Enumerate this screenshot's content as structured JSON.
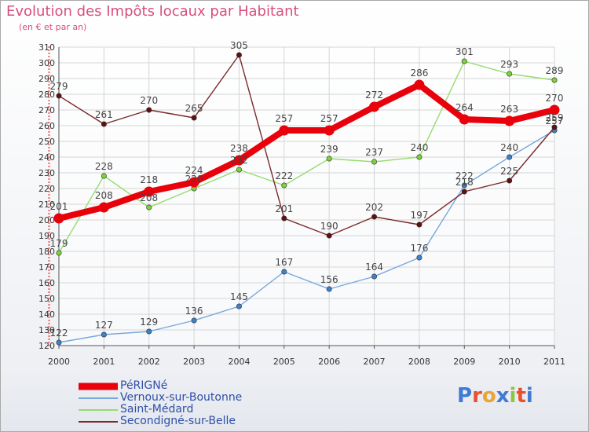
{
  "title": "Evolution des Impôts locaux par Habitant",
  "subtitle": "(en € et par an)",
  "brand": {
    "text": "Proxiti",
    "letter_colors": [
      "#3f7bd4",
      "#e8502e",
      "#e8a53a",
      "#3f7bd4",
      "#8dc63f",
      "#e8502e",
      "#3f7bd4"
    ]
  },
  "colors": {
    "title": "#d64f7d",
    "axis_text": "#333333",
    "grid": "#d5d5d5",
    "legend_text": "#2f4fa8"
  },
  "chart_data": {
    "type": "line",
    "title": "Evolution des Impôts locaux par Habitant",
    "subtitle": "(en € et par an)",
    "xlabel": "",
    "ylabel": "",
    "categories": [
      "2000",
      "2001",
      "2002",
      "2003",
      "2004",
      "2005",
      "2006",
      "2007",
      "2008",
      "2009",
      "2010",
      "2011"
    ],
    "ylim": [
      120,
      310
    ],
    "yticks": [
      120,
      130,
      140,
      150,
      160,
      170,
      180,
      190,
      200,
      210,
      220,
      230,
      240,
      250,
      260,
      270,
      280,
      290,
      300,
      310
    ],
    "grid": true,
    "legend_position": "bottom-left",
    "series": [
      {
        "name": "PéRIGNé",
        "color": "#e8000b",
        "marker_color": "#e8000b",
        "highlight": true,
        "values": [
          201,
          208,
          218,
          224,
          238,
          257,
          257,
          272,
          286,
          264,
          263,
          270
        ]
      },
      {
        "name": "Vernoux-sur-Boutonne",
        "color": "#78a7dd",
        "marker_color": "#3b82c8",
        "highlight": false,
        "values": [
          122,
          127,
          129,
          136,
          145,
          167,
          156,
          164,
          176,
          222,
          240,
          257
        ]
      },
      {
        "name": "Saint-Médard",
        "color": "#96dc6e",
        "marker_color": "#7fd13a",
        "highlight": false,
        "values": [
          179,
          228,
          208,
          220,
          232,
          222,
          239,
          237,
          240,
          301,
          293,
          289
        ]
      },
      {
        "name": "Secondigné-sur-Belle",
        "color": "#7a2a2a",
        "marker_color": "#5f1010",
        "highlight": false,
        "values": [
          279,
          261,
          270,
          265,
          305,
          201,
          190,
          202,
          197,
          218,
          225,
          259
        ]
      }
    ]
  }
}
